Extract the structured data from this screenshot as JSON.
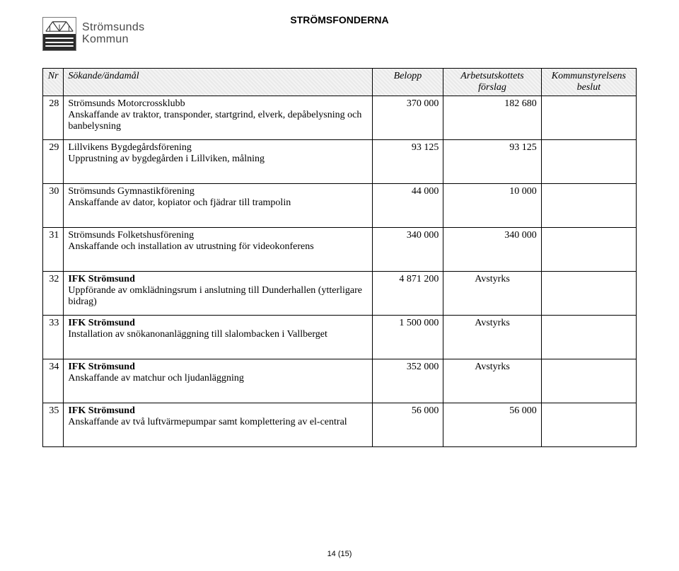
{
  "brand": {
    "line1": "Strömsunds",
    "line2": "Kommun"
  },
  "doc_title": "STRÖMSFONDERNA",
  "colors": {
    "text": "#000000",
    "header_bg_a": "#e9e9e9",
    "header_bg_b": "#f4f4f4",
    "border": "#000000",
    "brand_text": "#4a4a4a",
    "logo_border": "#7a7a7a",
    "logo_dark": "#2b2b2b"
  },
  "columns": {
    "nr": "Nr",
    "desc": "Sökande/ändamål",
    "amount": "Belopp",
    "proposal": "Arbetsutskottets förslag",
    "decision": "Kommunstyrelsens beslut"
  },
  "col_widths_pct": {
    "nr": 3.5,
    "desc": 52,
    "amt": 12,
    "prop": 16.5,
    "dec": 16
  },
  "typography": {
    "body_font": "Times New Roman",
    "brand_font": "Arial",
    "title_font": "Arial",
    "body_size_pt": 11,
    "title_size_pt": 11,
    "brand_size_pt": 12
  },
  "rows": [
    {
      "nr": "28",
      "title": "Strömsunds Motorcrossklubb",
      "body": "Anskaffande av traktor, transponder, startgrind, elverk, depåbelysning och banbelysning",
      "amount": "370 000",
      "proposal": "182 680",
      "decision": ""
    },
    {
      "nr": "29",
      "title": "Lillvikens Bygdegårdsförening",
      "body": "Upprustning av bygdegården i Lillviken, målning",
      "amount": "93 125",
      "proposal": "93 125",
      "decision": ""
    },
    {
      "nr": "30",
      "title": "Strömsunds Gymnastikförening",
      "body": "Anskaffande av dator, kopiator och fjädrar till trampolin",
      "amount": "44 000",
      "proposal": "10 000",
      "decision": ""
    },
    {
      "nr": "31",
      "title": "Strömsunds Folketshusförening",
      "body": "Anskaffande och installation av utrustning för videokonferens",
      "amount": "340 000",
      "proposal": "340 000",
      "decision": ""
    },
    {
      "nr": "32",
      "title": "IFK Strömsund",
      "title_bold": true,
      "body": "Uppförande av omklädningsrum i anslutning till Dunderhallen (ytterligare bidrag)",
      "amount": "4 871 200",
      "proposal": "Avstyrks",
      "proposal_is_text": true,
      "decision": ""
    },
    {
      "nr": "33",
      "title": "IFK Strömsund",
      "title_bold": true,
      "body": "Installation av snökanonanläggning till slalombacken i Vallberget",
      "amount": "1 500 000",
      "proposal": "Avstyrks",
      "proposal_is_text": true,
      "decision": ""
    },
    {
      "nr": "34",
      "title": "IFK Strömsund",
      "title_bold": true,
      "body": "Anskaffande av matchur och ljudanläggning",
      "amount": "352 000",
      "proposal": "Avstyrks",
      "proposal_is_text": true,
      "decision": ""
    },
    {
      "nr": "35",
      "title": "IFK Strömsund",
      "title_bold": true,
      "body": "Anskaffande av två luftvärmepumpar samt komplettering av el-central",
      "amount": "56 000",
      "proposal": "56 000",
      "decision": ""
    }
  ],
  "footer": "14 (15)"
}
